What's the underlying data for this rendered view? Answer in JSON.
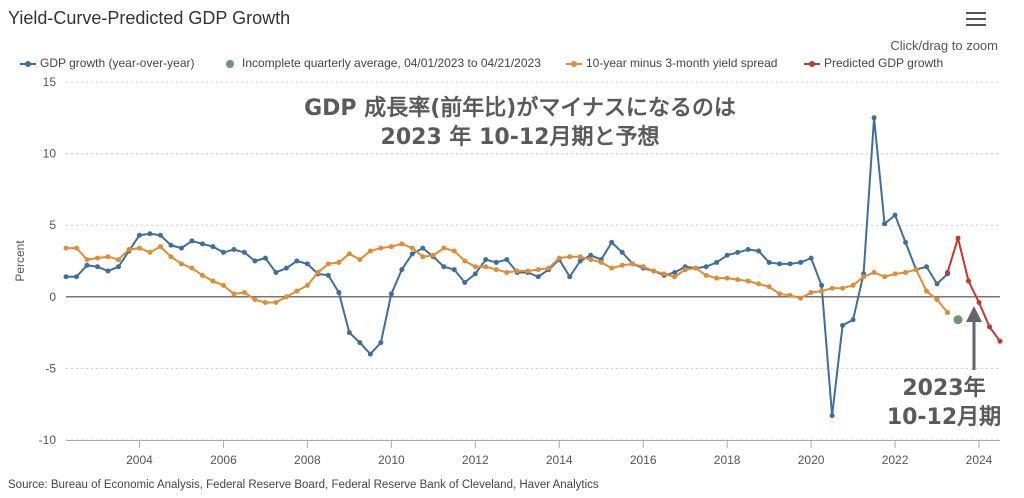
{
  "header": {
    "title": "Yield-Curve-Predicted GDP Growth",
    "zoom_hint": "Click/drag to zoom",
    "menu_icon": "hamburger-menu-icon"
  },
  "legend": [
    {
      "label": "GDP growth (year-over-year)",
      "color": "#3d6ea0",
      "marker": "circle"
    },
    {
      "label": "Incomplete quarterly average, 04/01/2023 to 04/21/2023",
      "color": "#6a9a6a",
      "marker": "circle"
    },
    {
      "label": "10-year minus 3-month yield spread",
      "color": "#e08c32",
      "marker": "circle"
    },
    {
      "label": "Predicted GDP growth",
      "color": "#c0392b",
      "marker": "circle"
    }
  ],
  "annotations": {
    "main_line1": "GDP 成長率(前年比)がマイナスになるのは",
    "main_line2": "2023 年 10-12月期と予想",
    "quarter_line1": "2023年",
    "quarter_line2": "10-12月期"
  },
  "source": "Source: Bureau of Economic Analysis, Federal Reserve Board, Federal Reserve Bank of Cleveland, Haver Analytics",
  "chart_data": {
    "type": "line",
    "title": "Yield-Curve-Predicted GDP Growth",
    "xlabel": "",
    "ylabel": "Percent",
    "xlim": [
      2002.25,
      2024.5
    ],
    "ylim": [
      -10,
      15
    ],
    "y_ticks": [
      -10,
      -5,
      0,
      5,
      10,
      15
    ],
    "x_ticks": [
      2004,
      2006,
      2008,
      2010,
      2012,
      2014,
      2016,
      2018,
      2020,
      2022,
      2024
    ],
    "grid": "horizontal dotted",
    "legend_position": "top",
    "zero_line": true,
    "series": [
      {
        "name": "GDP growth (year-over-year)",
        "color": "#3d6ea0",
        "points": [
          [
            2002.25,
            1.4
          ],
          [
            2002.5,
            1.4
          ],
          [
            2002.75,
            2.2
          ],
          [
            2003.0,
            2.1
          ],
          [
            2003.25,
            1.8
          ],
          [
            2003.5,
            2.1
          ],
          [
            2003.75,
            3.2
          ],
          [
            2004.0,
            4.3
          ],
          [
            2004.25,
            4.4
          ],
          [
            2004.5,
            4.3
          ],
          [
            2004.75,
            3.6
          ],
          [
            2005.0,
            3.4
          ],
          [
            2005.25,
            3.9
          ],
          [
            2005.5,
            3.7
          ],
          [
            2005.75,
            3.5
          ],
          [
            2006.0,
            3.1
          ],
          [
            2006.25,
            3.3
          ],
          [
            2006.5,
            3.1
          ],
          [
            2006.75,
            2.5
          ],
          [
            2007.0,
            2.7
          ],
          [
            2007.25,
            1.7
          ],
          [
            2007.5,
            2.0
          ],
          [
            2007.75,
            2.5
          ],
          [
            2008.0,
            2.3
          ],
          [
            2008.25,
            1.6
          ],
          [
            2008.5,
            1.5
          ],
          [
            2008.75,
            0.3
          ],
          [
            2009.0,
            -2.5
          ],
          [
            2009.25,
            -3.2
          ],
          [
            2009.5,
            -4.0
          ],
          [
            2009.75,
            -3.2
          ],
          [
            2010.0,
            0.2
          ],
          [
            2010.25,
            1.9
          ],
          [
            2010.5,
            3.0
          ],
          [
            2010.75,
            3.4
          ],
          [
            2011.0,
            2.8
          ],
          [
            2011.25,
            2.1
          ],
          [
            2011.5,
            1.9
          ],
          [
            2011.75,
            1.0
          ],
          [
            2012.0,
            1.6
          ],
          [
            2012.25,
            2.6
          ],
          [
            2012.5,
            2.4
          ],
          [
            2012.75,
            2.6
          ],
          [
            2013.0,
            1.7
          ],
          [
            2013.25,
            1.7
          ],
          [
            2013.5,
            1.4
          ],
          [
            2013.75,
            1.9
          ],
          [
            2014.0,
            2.6
          ],
          [
            2014.25,
            1.4
          ],
          [
            2014.5,
            2.5
          ],
          [
            2014.75,
            2.9
          ],
          [
            2015.0,
            2.6
          ],
          [
            2015.25,
            3.8
          ],
          [
            2015.5,
            3.1
          ],
          [
            2015.75,
            2.3
          ],
          [
            2016.0,
            2.0
          ],
          [
            2016.25,
            1.8
          ],
          [
            2016.5,
            1.5
          ],
          [
            2016.75,
            1.7
          ],
          [
            2017.0,
            2.1
          ],
          [
            2017.25,
            2.0
          ],
          [
            2017.5,
            2.1
          ],
          [
            2017.75,
            2.4
          ],
          [
            2018.0,
            2.9
          ],
          [
            2018.25,
            3.1
          ],
          [
            2018.5,
            3.3
          ],
          [
            2018.75,
            3.2
          ],
          [
            2019.0,
            2.4
          ],
          [
            2019.25,
            2.3
          ],
          [
            2019.5,
            2.3
          ],
          [
            2019.75,
            2.4
          ],
          [
            2020.0,
            2.7
          ],
          [
            2020.25,
            0.8
          ],
          [
            2020.5,
            -8.3
          ],
          [
            2020.75,
            -2.0
          ],
          [
            2021.0,
            -1.6
          ],
          [
            2021.25,
            1.6
          ],
          [
            2021.5,
            12.5
          ],
          [
            2021.75,
            5.1
          ],
          [
            2022.0,
            5.7
          ],
          [
            2022.25,
            3.8
          ],
          [
            2022.5,
            1.9
          ],
          [
            2022.75,
            2.1
          ],
          [
            2023.0,
            0.9
          ],
          [
            2023.25,
            1.6
          ]
        ]
      },
      {
        "name": "Incomplete quarterly average, 04/01/2023 to 04/21/2023",
        "color": "#6a9a6a",
        "points": [
          [
            2023.5,
            -1.6
          ]
        ]
      },
      {
        "name": "10-year minus 3-month yield spread",
        "color": "#e08c32",
        "points": [
          [
            2002.25,
            3.4
          ],
          [
            2002.5,
            3.4
          ],
          [
            2002.75,
            2.6
          ],
          [
            2003.0,
            2.7
          ],
          [
            2003.25,
            2.8
          ],
          [
            2003.5,
            2.6
          ],
          [
            2003.75,
            3.3
          ],
          [
            2004.0,
            3.4
          ],
          [
            2004.25,
            3.1
          ],
          [
            2004.5,
            3.5
          ],
          [
            2004.75,
            2.8
          ],
          [
            2005.0,
            2.3
          ],
          [
            2005.25,
            2.0
          ],
          [
            2005.5,
            1.5
          ],
          [
            2005.75,
            1.1
          ],
          [
            2006.0,
            0.8
          ],
          [
            2006.25,
            0.2
          ],
          [
            2006.5,
            0.3
          ],
          [
            2006.75,
            -0.2
          ],
          [
            2007.0,
            -0.4
          ],
          [
            2007.25,
            -0.4
          ],
          [
            2007.5,
            0.0
          ],
          [
            2007.75,
            0.4
          ],
          [
            2008.0,
            0.8
          ],
          [
            2008.25,
            1.7
          ],
          [
            2008.5,
            2.3
          ],
          [
            2008.75,
            2.4
          ],
          [
            2009.0,
            3.0
          ],
          [
            2009.25,
            2.6
          ],
          [
            2009.5,
            3.2
          ],
          [
            2009.75,
            3.4
          ],
          [
            2010.0,
            3.5
          ],
          [
            2010.25,
            3.7
          ],
          [
            2010.5,
            3.4
          ],
          [
            2010.75,
            2.8
          ],
          [
            2011.0,
            2.9
          ],
          [
            2011.25,
            3.4
          ],
          [
            2011.5,
            3.2
          ],
          [
            2011.75,
            2.5
          ],
          [
            2012.0,
            2.1
          ],
          [
            2012.25,
            2.1
          ],
          [
            2012.5,
            1.9
          ],
          [
            2012.75,
            1.7
          ],
          [
            2013.0,
            1.8
          ],
          [
            2013.25,
            1.8
          ],
          [
            2013.5,
            1.9
          ],
          [
            2013.75,
            2.0
          ],
          [
            2014.0,
            2.7
          ],
          [
            2014.25,
            2.8
          ],
          [
            2014.5,
            2.8
          ],
          [
            2014.75,
            2.6
          ],
          [
            2015.0,
            2.4
          ],
          [
            2015.25,
            2.0
          ],
          [
            2015.5,
            2.2
          ],
          [
            2015.75,
            2.3
          ],
          [
            2016.0,
            2.1
          ],
          [
            2016.25,
            1.8
          ],
          [
            2016.5,
            1.6
          ],
          [
            2016.75,
            1.4
          ],
          [
            2017.0,
            1.9
          ],
          [
            2017.25,
            2.0
          ],
          [
            2017.5,
            1.5
          ],
          [
            2017.75,
            1.3
          ],
          [
            2018.0,
            1.3
          ],
          [
            2018.25,
            1.2
          ],
          [
            2018.5,
            1.1
          ],
          [
            2018.75,
            0.9
          ],
          [
            2019.0,
            0.7
          ],
          [
            2019.25,
            0.2
          ],
          [
            2019.5,
            0.1
          ],
          [
            2019.75,
            -0.1
          ],
          [
            2020.0,
            0.3
          ],
          [
            2020.25,
            0.4
          ],
          [
            2020.5,
            0.6
          ],
          [
            2020.75,
            0.6
          ],
          [
            2021.0,
            0.8
          ],
          [
            2021.25,
            1.4
          ],
          [
            2021.5,
            1.7
          ],
          [
            2021.75,
            1.4
          ],
          [
            2022.0,
            1.6
          ],
          [
            2022.25,
            1.7
          ],
          [
            2022.5,
            1.9
          ],
          [
            2022.75,
            0.4
          ],
          [
            2023.0,
            -0.2
          ],
          [
            2023.25,
            -1.1
          ]
        ]
      },
      {
        "name": "Predicted GDP growth",
        "color": "#c0392b",
        "points": [
          [
            2023.25,
            1.7
          ],
          [
            2023.5,
            4.1
          ],
          [
            2023.75,
            1.1
          ],
          [
            2024.0,
            -0.4
          ],
          [
            2024.25,
            -2.1
          ],
          [
            2024.5,
            -3.1
          ]
        ]
      }
    ]
  }
}
